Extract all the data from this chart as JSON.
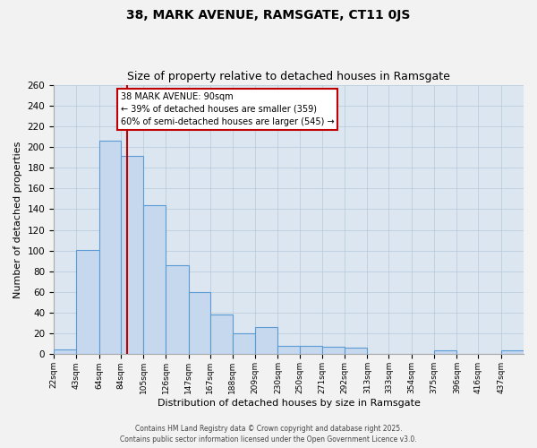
{
  "title": "38, MARK AVENUE, RAMSGATE, CT11 0JS",
  "subtitle": "Size of property relative to detached houses in Ramsgate",
  "xlabel": "Distribution of detached houses by size in Ramsgate",
  "ylabel": "Number of detached properties",
  "bar_values": [
    5,
    101,
    206,
    191,
    144,
    86,
    60,
    38,
    20,
    26,
    8,
    8,
    7,
    6,
    0,
    0,
    0,
    4,
    0,
    0,
    4
  ],
  "bin_edges": [
    22,
    43,
    64,
    84,
    105,
    126,
    147,
    167,
    188,
    209,
    230,
    250,
    271,
    292,
    313,
    333,
    354,
    375,
    396,
    416,
    437,
    458
  ],
  "x_tick_labels": [
    "22sqm",
    "43sqm",
    "64sqm",
    "84sqm",
    "105sqm",
    "126sqm",
    "147sqm",
    "167sqm",
    "188sqm",
    "209sqm",
    "230sqm",
    "250sqm",
    "271sqm",
    "292sqm",
    "313sqm",
    "333sqm",
    "354sqm",
    "375sqm",
    "396sqm",
    "416sqm",
    "437sqm"
  ],
  "bar_color": "#c5d8ed",
  "bar_edge_color": "#5b9bd5",
  "plot_bg_color": "#dce6f1",
  "background_color": "#f2f2f2",
  "grid_color": "#b8c8d8",
  "property_line_x": 90,
  "property_label": "38 MARK AVENUE: 90sqm",
  "annotation_line1": "← 39% of detached houses are smaller (359)",
  "annotation_line2": "60% of semi-detached houses are larger (545) →",
  "ylim": [
    0,
    260
  ],
  "yticks": [
    0,
    20,
    40,
    60,
    80,
    100,
    120,
    140,
    160,
    180,
    200,
    220,
    240,
    260
  ],
  "footer1": "Contains HM Land Registry data © Crown copyright and database right 2025.",
  "footer2": "Contains public sector information licensed under the Open Government Licence v3.0."
}
